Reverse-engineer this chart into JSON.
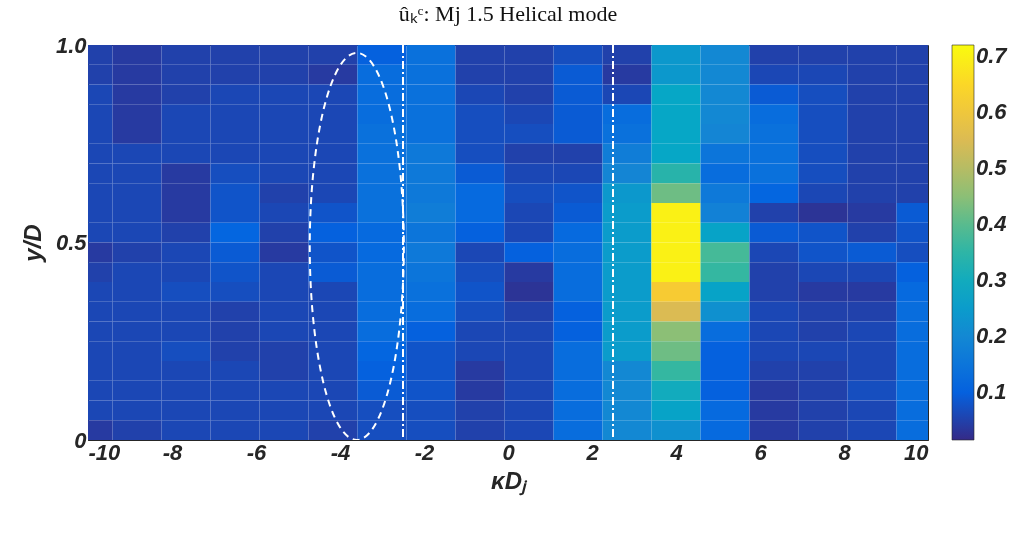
{
  "chart_data": {
    "type": "heatmap",
    "title": "ûₖᶜ: Mj 1.5 Helical mode",
    "xlabel": "κDⱼ",
    "ylabel": "y/D",
    "x": [
      -10,
      -8.83,
      -7.67,
      -6.5,
      -5.33,
      -4.17,
      -3,
      -1.83,
      -0.67,
      0.5,
      1.67,
      2.83,
      4,
      5.17,
      6.33,
      7.5,
      8.67,
      9.83
    ],
    "xlim": [
      -10,
      10
    ],
    "xticks": [
      -10,
      -8,
      -6,
      -4,
      -2,
      0,
      2,
      4,
      6,
      8,
      10
    ],
    "ylim": [
      0,
      1
    ],
    "yticks": [
      0,
      0.5,
      {
        "value": 1,
        "label": "1.0"
      }
    ],
    "clim": [
      0.015,
      0.72
    ],
    "cticks": [
      0.1,
      0.2,
      0.3,
      0.4,
      0.5,
      0.6,
      0.7
    ],
    "cells": [
      [
        0.05,
        0.04,
        0.05,
        0.05,
        0.05,
        0.05,
        0.1,
        0.14,
        0.05,
        0.05,
        0.07,
        0.05,
        0.24,
        0.2,
        0.05,
        0.05,
        0.05,
        0.05
      ],
      [
        0.05,
        0.04,
        0.05,
        0.05,
        0.05,
        0.04,
        0.13,
        0.14,
        0.05,
        0.05,
        0.09,
        0.04,
        0.24,
        0.2,
        0.06,
        0.06,
        0.05,
        0.05
      ],
      [
        0.06,
        0.04,
        0.05,
        0.06,
        0.06,
        0.06,
        0.13,
        0.14,
        0.06,
        0.05,
        0.09,
        0.06,
        0.28,
        0.2,
        0.09,
        0.07,
        0.05,
        0.05
      ],
      [
        0.06,
        0.04,
        0.06,
        0.06,
        0.06,
        0.06,
        0.13,
        0.14,
        0.07,
        0.06,
        0.09,
        0.13,
        0.28,
        0.2,
        0.13,
        0.07,
        0.05,
        0.05
      ],
      [
        0.06,
        0.04,
        0.06,
        0.06,
        0.06,
        0.06,
        0.14,
        0.14,
        0.07,
        0.07,
        0.09,
        0.14,
        0.28,
        0.19,
        0.14,
        0.07,
        0.05,
        0.05
      ],
      [
        0.06,
        0.06,
        0.06,
        0.06,
        0.06,
        0.06,
        0.14,
        0.16,
        0.07,
        0.05,
        0.05,
        0.17,
        0.28,
        0.15,
        0.14,
        0.07,
        0.05,
        0.05
      ],
      [
        0.06,
        0.06,
        0.04,
        0.07,
        0.06,
        0.06,
        0.14,
        0.16,
        0.09,
        0.06,
        0.06,
        0.19,
        0.34,
        0.13,
        0.14,
        0.07,
        0.05,
        0.05
      ],
      [
        0.06,
        0.06,
        0.04,
        0.08,
        0.05,
        0.06,
        0.14,
        0.16,
        0.12,
        0.07,
        0.08,
        0.24,
        0.42,
        0.16,
        0.11,
        0.06,
        0.05,
        0.05
      ],
      [
        0.06,
        0.06,
        0.04,
        0.08,
        0.06,
        0.08,
        0.14,
        0.17,
        0.12,
        0.06,
        0.09,
        0.25,
        0.7,
        0.18,
        0.05,
        0.03,
        0.04,
        0.09
      ],
      [
        0.06,
        0.06,
        0.05,
        0.11,
        0.05,
        0.1,
        0.12,
        0.15,
        0.1,
        0.06,
        0.12,
        0.25,
        0.7,
        0.27,
        0.09,
        0.08,
        0.05,
        0.08
      ],
      [
        0.04,
        0.05,
        0.06,
        0.09,
        0.04,
        0.08,
        0.12,
        0.16,
        0.06,
        0.1,
        0.13,
        0.25,
        0.7,
        0.38,
        0.06,
        0.08,
        0.09,
        0.07
      ],
      [
        0.05,
        0.06,
        0.06,
        0.08,
        0.06,
        0.09,
        0.13,
        0.15,
        0.07,
        0.04,
        0.13,
        0.25,
        0.7,
        0.36,
        0.05,
        0.06,
        0.06,
        0.1
      ],
      [
        0.06,
        0.06,
        0.07,
        0.07,
        0.06,
        0.06,
        0.13,
        0.14,
        0.08,
        0.03,
        0.13,
        0.25,
        0.62,
        0.27,
        0.05,
        0.04,
        0.04,
        0.12
      ],
      [
        0.06,
        0.06,
        0.06,
        0.05,
        0.06,
        0.06,
        0.13,
        0.13,
        0.07,
        0.05,
        0.1,
        0.25,
        0.55,
        0.22,
        0.06,
        0.05,
        0.05,
        0.13
      ],
      [
        0.06,
        0.06,
        0.06,
        0.05,
        0.06,
        0.06,
        0.13,
        0.1,
        0.06,
        0.06,
        0.1,
        0.25,
        0.45,
        0.13,
        0.06,
        0.05,
        0.06,
        0.13
      ],
      [
        0.06,
        0.06,
        0.07,
        0.05,
        0.05,
        0.06,
        0.11,
        0.08,
        0.06,
        0.06,
        0.13,
        0.25,
        0.42,
        0.1,
        0.06,
        0.06,
        0.06,
        0.13
      ],
      [
        0.06,
        0.06,
        0.06,
        0.06,
        0.05,
        0.06,
        0.1,
        0.08,
        0.04,
        0.06,
        0.13,
        0.2,
        0.36,
        0.1,
        0.05,
        0.05,
        0.06,
        0.13
      ],
      [
        0.06,
        0.06,
        0.06,
        0.06,
        0.06,
        0.06,
        0.09,
        0.08,
        0.04,
        0.06,
        0.13,
        0.2,
        0.3,
        0.1,
        0.04,
        0.05,
        0.07,
        0.13
      ],
      [
        0.06,
        0.06,
        0.06,
        0.06,
        0.06,
        0.06,
        0.07,
        0.07,
        0.05,
        0.06,
        0.13,
        0.2,
        0.27,
        0.12,
        0.04,
        0.05,
        0.06,
        0.13
      ],
      [
        0.04,
        0.05,
        0.06,
        0.06,
        0.06,
        0.05,
        0.07,
        0.07,
        0.05,
        0.06,
        0.13,
        0.2,
        0.22,
        0.12,
        0.04,
        0.05,
        0.06,
        0.13
      ]
    ],
    "ref_lines": [
      {
        "axis": "x",
        "value": -2.5,
        "color": "#ffffff",
        "line_style": "dashed"
      },
      {
        "axis": "x",
        "value": 2.5,
        "color": "#ffffff",
        "line_style": "dashed"
      }
    ]
  }
}
